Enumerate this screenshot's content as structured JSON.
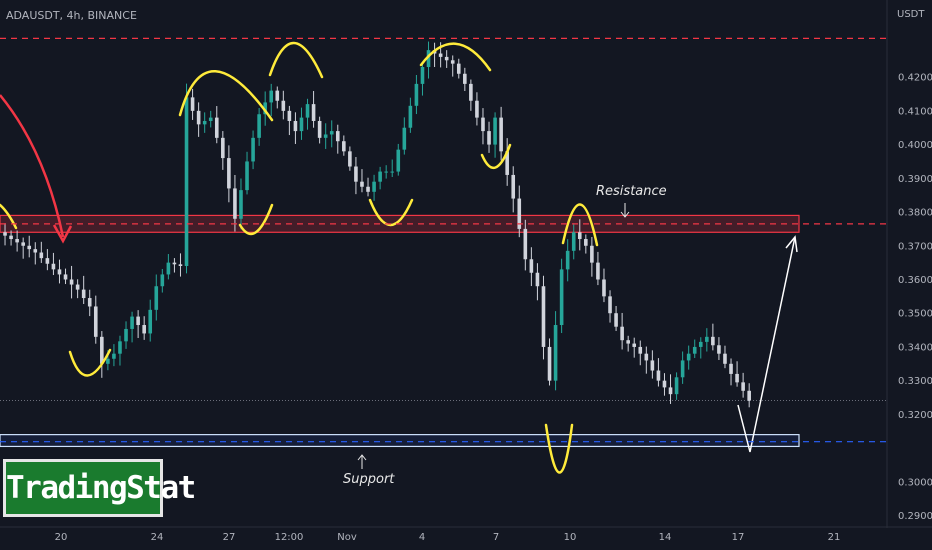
{
  "header": {
    "symbol": "ADAUSDT, 4h, BINANCE",
    "unit": "USDT"
  },
  "logo": {
    "text": "TradingStat"
  },
  "colors": {
    "background": "#131722",
    "bull": "#26a69a",
    "bear": "#d1d4dc",
    "resistance": "#f23645",
    "support": "#2962ff",
    "annotation": "#ffeb3b",
    "arrow_red": "#f23645",
    "arrow_white": "#ffffff"
  },
  "chart_data": {
    "type": "candlestick",
    "y_axis": {
      "range": [
        0.2875,
        0.4405
      ],
      "ticks": [
        "0.4200",
        "0.4100",
        "0.4000",
        "0.3900",
        "0.3800",
        "0.3700",
        "0.3600",
        "0.3500",
        "0.3400",
        "0.3300",
        "0.3200",
        "0.3000",
        "0.2900"
      ]
    },
    "x_axis": {
      "ticks": [
        "20",
        "24",
        "27",
        "12:00",
        "Nov",
        "4",
        "7",
        "10",
        "14",
        "17",
        "21"
      ]
    },
    "levels": [
      {
        "name": "resistance-top",
        "value": 0.4315,
        "label": "0.4315",
        "color": "#f23645"
      },
      {
        "name": "resistance",
        "value": 0.3765,
        "label": "0.3765",
        "color": "#f23645"
      },
      {
        "name": "current-price",
        "value": 0.3241,
        "label": "0.3241",
        "color": "#ffffff"
      },
      {
        "name": "support",
        "value": 0.3119,
        "label": "0.3119",
        "color": "#2962ff"
      }
    ],
    "zones": [
      {
        "name": "resistance-zone",
        "top": 0.379,
        "bottom": 0.374
      },
      {
        "name": "support-zone",
        "top": 0.314,
        "bottom": 0.3105
      }
    ],
    "path": [
      [
        0,
        0.374
      ],
      [
        6,
        0.368
      ],
      [
        9,
        0.363
      ],
      [
        13,
        0.357
      ],
      [
        15,
        0.352
      ],
      [
        16,
        0.343
      ],
      [
        17,
        0.335
      ],
      [
        19,
        0.338
      ],
      [
        22,
        0.349
      ],
      [
        24,
        0.344
      ],
      [
        26,
        0.358
      ],
      [
        28,
        0.365
      ],
      [
        30,
        0.364
      ],
      [
        31,
        0.414
      ],
      [
        33,
        0.406
      ],
      [
        35,
        0.408
      ],
      [
        37,
        0.396
      ],
      [
        39,
        0.378
      ],
      [
        41,
        0.395
      ],
      [
        43,
        0.409
      ],
      [
        45,
        0.416
      ],
      [
        47,
        0.41
      ],
      [
        49,
        0.404
      ],
      [
        51,
        0.412
      ],
      [
        53,
        0.402
      ],
      [
        55,
        0.404
      ],
      [
        57,
        0.398
      ],
      [
        59,
        0.389
      ],
      [
        61,
        0.386
      ],
      [
        63,
        0.392
      ],
      [
        65,
        0.392
      ],
      [
        67,
        0.405
      ],
      [
        69,
        0.418
      ],
      [
        71,
        0.428
      ],
      [
        73,
        0.426
      ],
      [
        75,
        0.424
      ],
      [
        77,
        0.418
      ],
      [
        79,
        0.408
      ],
      [
        81,
        0.4
      ],
      [
        82,
        0.408
      ],
      [
        83,
        0.398
      ],
      [
        85,
        0.384
      ],
      [
        87,
        0.366
      ],
      [
        89,
        0.358
      ],
      [
        90,
        0.34
      ],
      [
        91,
        0.33
      ],
      [
        93,
        0.363
      ],
      [
        95,
        0.374
      ],
      [
        97,
        0.37
      ],
      [
        99,
        0.36
      ],
      [
        101,
        0.35
      ],
      [
        103,
        0.342
      ],
      [
        105,
        0.34
      ],
      [
        107,
        0.336
      ],
      [
        109,
        0.33
      ],
      [
        111,
        0.326
      ],
      [
        113,
        0.336
      ],
      [
        115,
        0.34
      ],
      [
        117,
        0.343
      ],
      [
        119,
        0.338
      ],
      [
        121,
        0.332
      ],
      [
        123,
        0.327
      ],
      [
        124,
        0.324
      ]
    ],
    "annotations": [
      {
        "name": "resistance-label",
        "text": "Resistance"
      },
      {
        "name": "support-label",
        "text": "Support"
      }
    ]
  }
}
